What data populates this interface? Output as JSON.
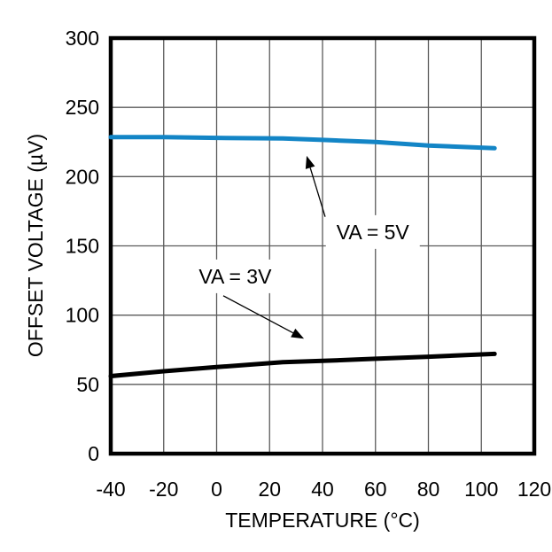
{
  "chart_data": {
    "type": "line",
    "title": "",
    "xlabel": "TEMPERATURE (°C)",
    "ylabel": "OFFSET VOLTAGE (µV)",
    "xlim": [
      -40,
      120
    ],
    "ylim": [
      0,
      300
    ],
    "xticks": [
      -40,
      -20,
      0,
      20,
      40,
      60,
      80,
      100,
      120
    ],
    "yticks": [
      0,
      50,
      100,
      150,
      200,
      250,
      300
    ],
    "grid": true,
    "legend_position": "none (inline annotations with arrows)",
    "colors": {
      "background": "#ffffff",
      "frame": "#000000",
      "grid": "#5a5a5a",
      "series_va5": "#1385c6",
      "series_va3": "#000000",
      "annotation": "#000000"
    },
    "series": [
      {
        "id": "va-5v",
        "name": "VA = 5V",
        "color": "#1385c6",
        "points": [
          [
            -40,
            228.5
          ],
          [
            -20,
            228.5
          ],
          [
            0,
            228
          ],
          [
            25,
            227.5
          ],
          [
            40,
            226.5
          ],
          [
            60,
            225
          ],
          [
            80,
            222.5
          ],
          [
            105,
            220.5
          ]
        ]
      },
      {
        "id": "va-3v",
        "name": "VA = 3V",
        "color": "#000000",
        "points": [
          [
            -40,
            56
          ],
          [
            -20,
            59.5
          ],
          [
            0,
            62.5
          ],
          [
            25,
            66
          ],
          [
            40,
            67
          ],
          [
            60,
            68.5
          ],
          [
            80,
            70
          ],
          [
            105,
            72
          ]
        ]
      }
    ],
    "annotations": [
      {
        "id": "ann-va5",
        "text": "VA = 5V",
        "text_at": [
          59,
          160
        ],
        "arrow_from": [
          41,
          171
        ],
        "arrow_to": [
          34,
          215
        ]
      },
      {
        "id": "ann-va3",
        "text": "VA = 3V",
        "text_at": [
          7,
          128
        ],
        "arrow_from": [
          2.5,
          114
        ],
        "arrow_to": [
          33,
          83
        ]
      }
    ]
  }
}
